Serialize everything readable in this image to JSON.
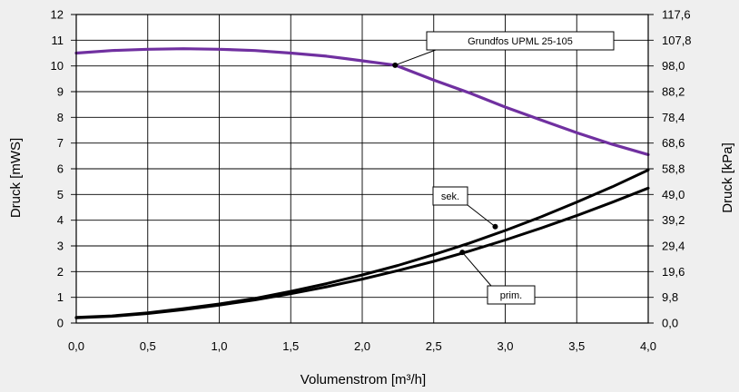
{
  "chart_data": {
    "type": "line",
    "xlabel": "Volumenstrom [m³/h]",
    "ylabel": "Druck [mWS]",
    "y2label": "Druck [kPa]",
    "xlim": [
      0,
      4.0
    ],
    "ylim": [
      0,
      12
    ],
    "y2lim": [
      0,
      117.6
    ],
    "x_ticks": [
      "0,0",
      "0,5",
      "1,0",
      "1,5",
      "2,0",
      "2,5",
      "3,0",
      "3,5",
      "4,0"
    ],
    "y_ticks": [
      "0",
      "1",
      "2",
      "3",
      "4",
      "5",
      "6",
      "7",
      "8",
      "9",
      "10",
      "11",
      "12"
    ],
    "y2_ticks": [
      "0,0",
      "9,8",
      "19,6",
      "29,4",
      "39,2",
      "49,0",
      "58,8",
      "68,6",
      "78,4",
      "88,2",
      "98,0",
      "107,8",
      "117,6"
    ],
    "grid": true,
    "series": [
      {
        "name": "Grundfos UPML  25-105",
        "color": "#7030a0",
        "x": [
          0.0,
          0.25,
          0.5,
          0.75,
          1.0,
          1.25,
          1.5,
          1.75,
          2.0,
          2.23,
          2.5,
          2.75,
          3.0,
          3.25,
          3.5,
          3.75,
          4.0
        ],
        "y": [
          10.5,
          10.6,
          10.65,
          10.67,
          10.65,
          10.6,
          10.5,
          10.38,
          10.2,
          10.03,
          9.45,
          8.95,
          8.4,
          7.9,
          7.4,
          6.95,
          6.55
        ]
      },
      {
        "name": "sek.",
        "color": "#000000",
        "x": [
          0.0,
          0.25,
          0.5,
          0.75,
          1.0,
          1.25,
          1.5,
          1.75,
          2.0,
          2.25,
          2.5,
          2.75,
          3.0,
          3.25,
          3.5,
          3.75,
          4.0
        ],
        "y": [
          0.22,
          0.28,
          0.4,
          0.56,
          0.74,
          0.96,
          1.23,
          1.53,
          1.87,
          2.24,
          2.66,
          3.11,
          3.6,
          4.13,
          4.7,
          5.3,
          5.95
        ]
      },
      {
        "name": "prim.",
        "color": "#000000",
        "x": [
          0.0,
          0.25,
          0.5,
          0.75,
          1.0,
          1.25,
          1.5,
          1.75,
          2.0,
          2.25,
          2.5,
          2.75,
          3.0,
          3.25,
          3.5,
          3.75,
          4.0
        ],
        "y": [
          0.2,
          0.26,
          0.37,
          0.52,
          0.7,
          0.9,
          1.14,
          1.41,
          1.71,
          2.04,
          2.4,
          2.8,
          3.23,
          3.69,
          4.18,
          4.7,
          5.25
        ]
      }
    ],
    "annotations": [
      {
        "text": "Grundfos UPML  25-105",
        "series": 0,
        "x": 2.23,
        "y": 10.03
      },
      {
        "text": "sek.",
        "series": 1,
        "x": 2.93,
        "y": 3.75
      },
      {
        "text": "prim.",
        "series": 2,
        "x": 2.7,
        "y": 2.75
      }
    ]
  }
}
